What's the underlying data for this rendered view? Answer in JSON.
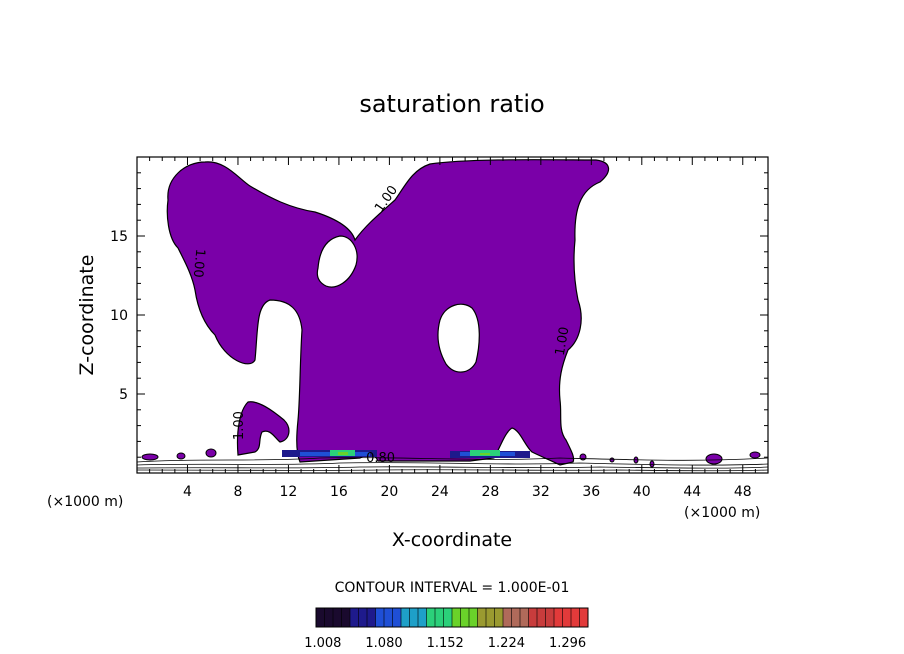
{
  "chart_data": {
    "type": "heatmap",
    "title": "saturation ratio",
    "xlabel": "X-coordinate",
    "ylabel": "Z-coordinate",
    "x_unit_left": "(×1000 m)",
    "x_unit_right": "(×1000 m)",
    "xlim": [
      0,
      50
    ],
    "ylim": [
      0,
      20
    ],
    "x_ticks": [
      4,
      8,
      12,
      16,
      20,
      24,
      28,
      32,
      36,
      40,
      44,
      48
    ],
    "y_ticks": [
      5,
      10,
      15
    ],
    "contour_interval_label": "CONTOUR INTERVAL = 1.000E-01",
    "contour_labels": [
      {
        "text": "1.00",
        "x": 20,
        "y": 17.2,
        "angle": -55
      },
      {
        "text": "1.00",
        "x": 4.6,
        "y": 13.3,
        "angle": 95
      },
      {
        "text": "1.00",
        "x": 34.0,
        "y": 8.3,
        "angle": -80
      },
      {
        "text": "1.00",
        "x": 8.4,
        "y": 3.0,
        "angle": -90
      },
      {
        "text": "0.80",
        "x": 19.3,
        "y": 0.7,
        "angle": 0
      }
    ],
    "fill_color": "#7a00a8",
    "colorbar_ticks": [
      "1.008",
      "1.080",
      "1.152",
      "1.224",
      "1.296"
    ],
    "colorbar_range": [
      1.0,
      1.32
    ],
    "colorbar_colors": [
      "#1a0a2e",
      "#1e1a8c",
      "#1f4fd6",
      "#1ea0c8",
      "#2bd07a",
      "#6ad22a",
      "#9a9a30",
      "#b06a5a",
      "#c83c3c",
      "#e23a3a"
    ],
    "grid": false
  }
}
